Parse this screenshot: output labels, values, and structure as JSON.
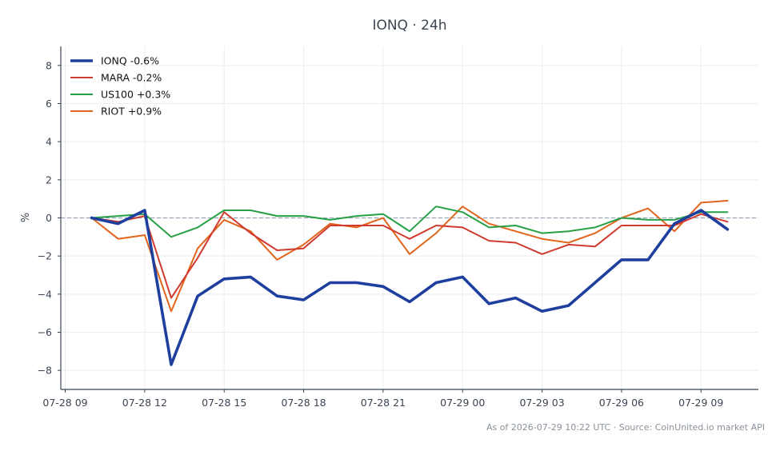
{
  "chart_data": {
    "type": "line",
    "title": "IONQ · 24h",
    "ylabel": "%",
    "xlabel": "",
    "ylim": [
      -9,
      9
    ],
    "yticks": [
      8,
      6,
      4,
      2,
      0,
      -2,
      -4,
      -6,
      -8
    ],
    "ytick_labels": [
      "8",
      "6",
      "4",
      "2",
      "0",
      "−2",
      "−4",
      "−6",
      "−8"
    ],
    "xticks": [
      {
        "x": "2026-07-28 09:00",
        "label": "07-28 09"
      },
      {
        "x": "2026-07-28 12:00",
        "label": "07-28 12"
      },
      {
        "x": "2026-07-28 15:00",
        "label": "07-28 15"
      },
      {
        "x": "2026-07-28 18:00",
        "label": "07-28 18"
      },
      {
        "x": "2026-07-28 21:00",
        "label": "07-28 21"
      },
      {
        "x": "2026-07-29 00:00",
        "label": "07-29 00"
      },
      {
        "x": "2026-07-29 03:00",
        "label": "07-29 03"
      },
      {
        "x": "2026-07-29 06:00",
        "label": "07-29 06"
      },
      {
        "x": "2026-07-29 09:00",
        "label": "07-29 09"
      }
    ],
    "xlim": [
      "2026-07-28 08:50",
      "2026-07-29 11:10"
    ],
    "x": [
      "2026-07-28 10:00",
      "2026-07-28 11:00",
      "2026-07-28 12:00",
      "2026-07-28 13:00",
      "2026-07-28 14:00",
      "2026-07-28 15:00",
      "2026-07-28 16:00",
      "2026-07-28 17:00",
      "2026-07-28 18:00",
      "2026-07-28 19:00",
      "2026-07-28 20:00",
      "2026-07-28 21:00",
      "2026-07-28 22:00",
      "2026-07-28 23:00",
      "2026-07-29 00:00",
      "2026-07-29 01:00",
      "2026-07-29 02:00",
      "2026-07-29 03:00",
      "2026-07-29 04:00",
      "2026-07-29 05:00",
      "2026-07-29 06:00",
      "2026-07-29 07:00",
      "2026-07-29 08:00",
      "2026-07-29 09:00",
      "2026-07-29 10:00"
    ],
    "zero_line": true,
    "grid": true,
    "legend_position": "top-left",
    "series": [
      {
        "name": "IONQ -0.6%",
        "color": "#1f3f9e",
        "width": 3.6,
        "values": [
          0.0,
          -0.3,
          0.4,
          -7.7,
          -4.1,
          -3.2,
          -3.1,
          -4.1,
          -4.3,
          -3.4,
          -3.4,
          -3.6,
          -4.4,
          -3.4,
          -3.1,
          -4.5,
          -4.2,
          -4.9,
          -4.6,
          -3.4,
          -2.2,
          -2.2,
          -0.3,
          0.4,
          -0.6
        ]
      },
      {
        "name": "MARA -0.2%",
        "color": "#d03a2f",
        "width": 2,
        "values": [
          0.0,
          -0.2,
          0.1,
          -4.2,
          -2.1,
          0.3,
          -0.8,
          -1.7,
          -1.6,
          -0.4,
          -0.4,
          -0.4,
          -1.1,
          -0.4,
          -0.5,
          -1.2,
          -1.3,
          -1.9,
          -1.4,
          -1.5,
          -0.4,
          -0.4,
          -0.4,
          0.2,
          -0.2
        ]
      },
      {
        "name": "US100 +0.3%",
        "color": "#27a046",
        "width": 2,
        "values": [
          0.0,
          0.1,
          0.2,
          -1.0,
          -0.5,
          0.4,
          0.4,
          0.1,
          0.1,
          -0.1,
          0.1,
          0.2,
          -0.7,
          0.6,
          0.3,
          -0.5,
          -0.4,
          -0.8,
          -0.7,
          -0.5,
          0.0,
          -0.1,
          -0.1,
          0.3,
          0.3
        ]
      },
      {
        "name": "RIOT +0.9%",
        "color": "#e2651c",
        "width": 2,
        "values": [
          0.0,
          -1.1,
          -0.9,
          -4.9,
          -1.6,
          -0.1,
          -0.7,
          -2.2,
          -1.4,
          -0.3,
          -0.5,
          0.0,
          -1.9,
          -0.8,
          0.6,
          -0.3,
          -0.7,
          -1.1,
          -1.3,
          -0.8,
          0.0,
          0.5,
          -0.7,
          0.8,
          0.9
        ]
      }
    ]
  },
  "footer": "As of 2026-07-29 10:22 UTC · Source: CoinUnited.io market API"
}
